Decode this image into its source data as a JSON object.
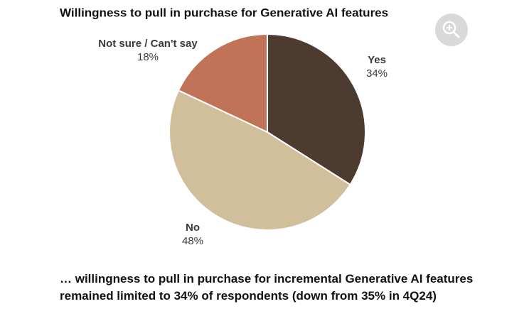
{
  "chart_data": {
    "type": "pie",
    "title": "Willingness to pull in purchase for Generative AI features",
    "categories": [
      "Yes",
      "No",
      "Not sure / Can't say"
    ],
    "values": [
      34,
      48,
      18
    ],
    "value_labels": [
      "34%",
      "48%",
      "18%"
    ],
    "colors": [
      "#4e3b30",
      "#d1bf9c",
      "#c07356"
    ],
    "caption": "… willingness to pull in purchase for incremental Generative AI features remained limited to 34% of respondents (down from 35% in 4Q24)"
  }
}
